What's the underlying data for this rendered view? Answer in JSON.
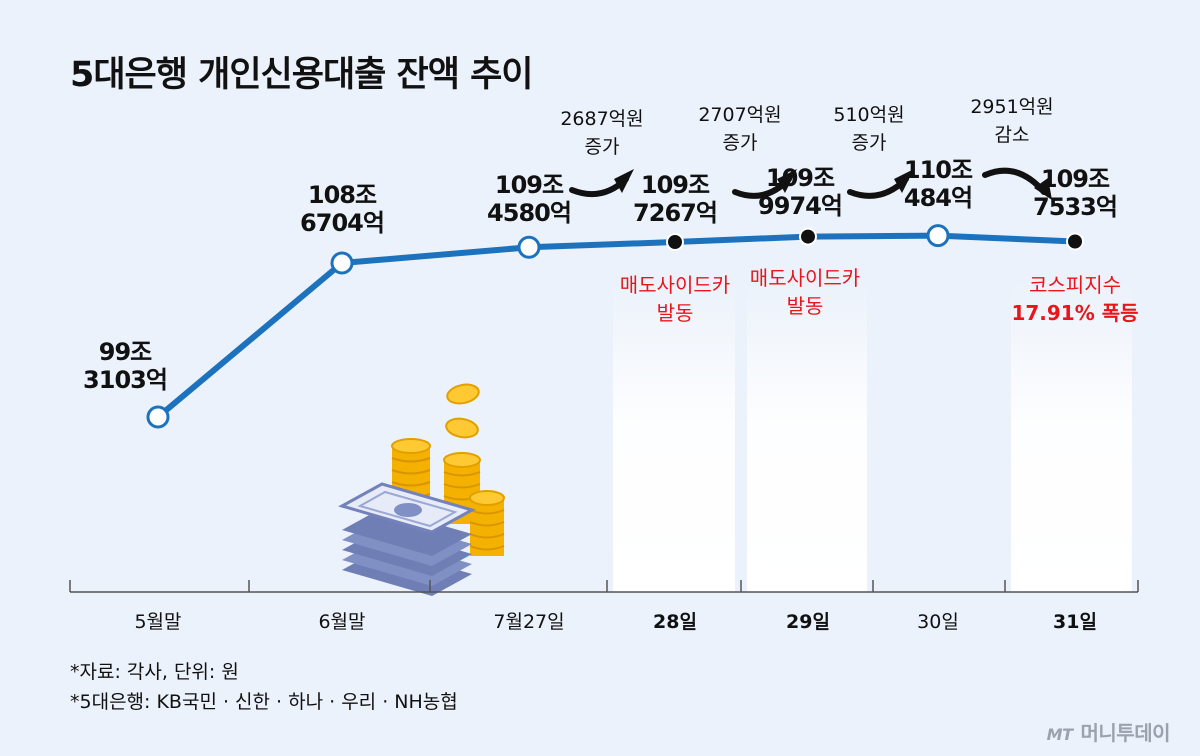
{
  "title": "5대은행 개인신용대출 잔액 추이",
  "footnotes": [
    "*자료: 각사, 단위: 원",
    "*5대은행: KB국민 · 신한 · 하나 · 우리 · NH농협"
  ],
  "logo": {
    "mark": "MT",
    "text": "머니투데이"
  },
  "colors": {
    "line": "#1c72bd",
    "event": "#e8161b",
    "highlight": "#ffffff",
    "background": "#ecf2fb"
  },
  "icons": [
    "money-stack-icon",
    "coin-stack-icon",
    "curved-arrow-icon"
  ],
  "chart_data": {
    "type": "line",
    "categories": [
      "5월말",
      "6월말",
      "7월27일",
      "28일",
      "29일",
      "30일",
      "31일"
    ],
    "series": [
      {
        "values": [
          993103,
          1086704,
          1094580,
          1097267,
          1099974,
          1100484,
          1097533
        ]
      }
    ],
    "unit": "억원",
    "value_labels": [
      [
        "99조",
        "3103억"
      ],
      [
        "108조",
        "6704억"
      ],
      [
        "109조",
        "4580억"
      ],
      [
        "109조",
        "7267억"
      ],
      [
        "109조",
        "9974억"
      ],
      [
        "110조",
        "484억"
      ],
      [
        "109조",
        "7533억"
      ]
    ],
    "highlighted_days": [
      "28일",
      "29일",
      "31일"
    ],
    "changes": [
      {
        "from": "7월27일",
        "to": "28일",
        "text": [
          "2687억원",
          "증가"
        ]
      },
      {
        "from": "28일",
        "to": "29일",
        "text": [
          "2707억원",
          "증가"
        ]
      },
      {
        "from": "29일",
        "to": "30일",
        "text": [
          "510억원",
          "증가"
        ]
      },
      {
        "from": "30일",
        "to": "31일",
        "text": [
          "2951억원",
          "감소"
        ]
      }
    ],
    "events": [
      {
        "day": "28일",
        "text": [
          "매도사이드카",
          "발동"
        ]
      },
      {
        "day": "29일",
        "text": [
          "매도사이드카",
          "발동"
        ]
      },
      {
        "day": "31일",
        "text": [
          "코스피지수",
          "17.91% 폭등"
        ]
      }
    ],
    "grid": false
  }
}
